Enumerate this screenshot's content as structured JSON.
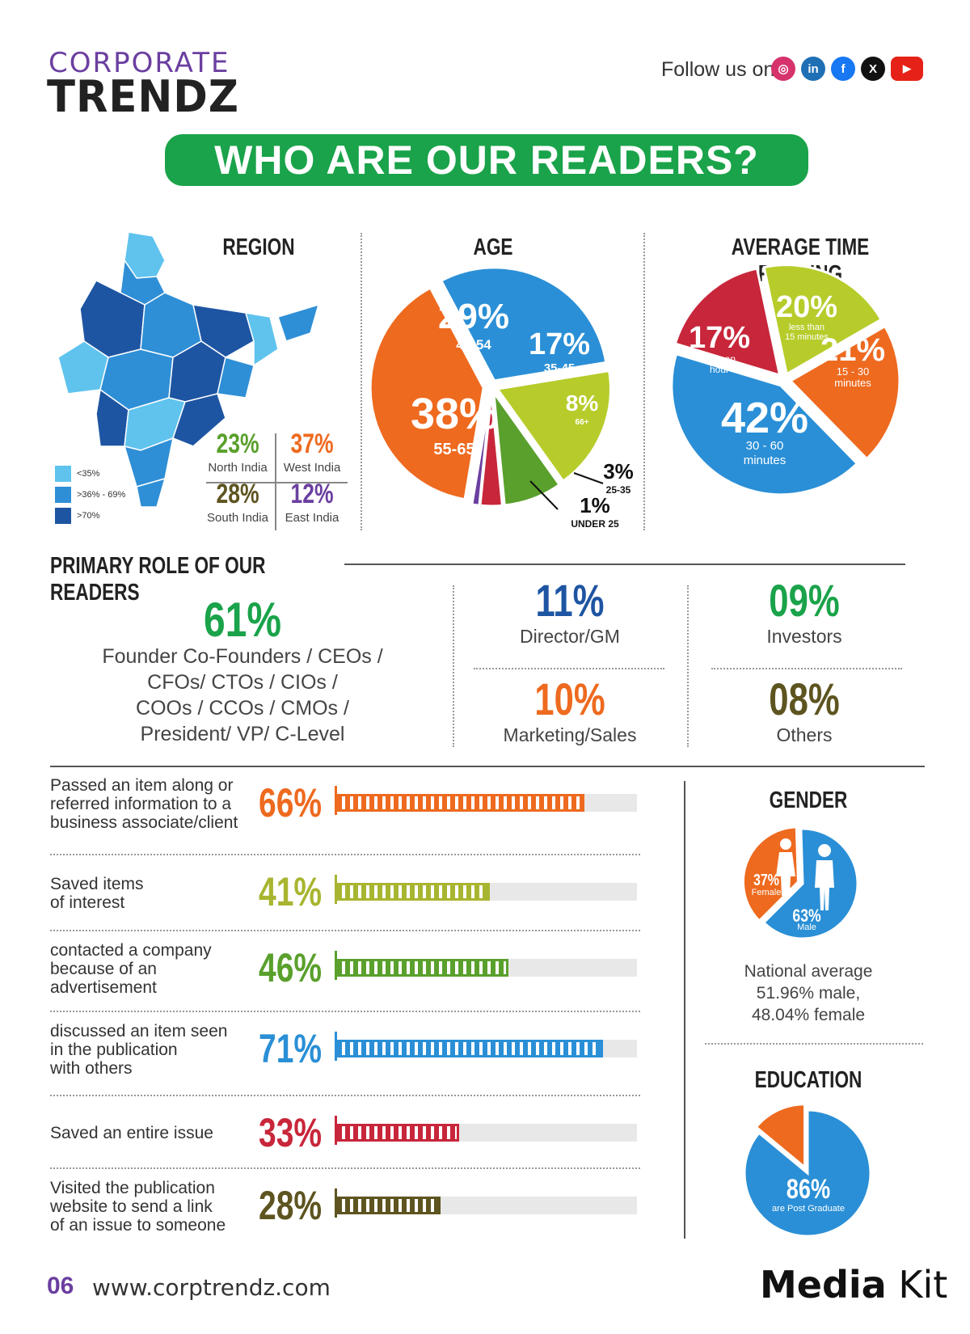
{
  "header": {
    "logo_top": "CORPORATE",
    "logo_bottom": "TRENDZ",
    "follow_text": "Follow us on",
    "socials": [
      {
        "icon": "instagram-icon",
        "glyph": "◎",
        "color": "#d6336c"
      },
      {
        "icon": "linkedin-icon",
        "glyph": "in",
        "color": "#1f6fb5"
      },
      {
        "icon": "facebook-icon",
        "glyph": "f",
        "color": "#1877f2"
      },
      {
        "icon": "x-icon",
        "glyph": "X",
        "color": "#111111"
      },
      {
        "icon": "youtube-icon",
        "glyph": "▶",
        "color": "#e62117"
      }
    ]
  },
  "banner": "WHO ARE OUR READERS?",
  "region": {
    "title": "REGION",
    "stats": [
      {
        "value": "23%",
        "label": "North India",
        "color": "#5aa02c"
      },
      {
        "value": "37%",
        "label": "West India",
        "color": "#ee6a1f"
      },
      {
        "value": "28%",
        "label": "South India",
        "color": "#5e5420"
      },
      {
        "value": "12%",
        "label": "East India",
        "color": "#6b3fa0"
      }
    ],
    "legend": [
      {
        "label": "<35%",
        "color": "#5fc3ee"
      },
      {
        "label": ">36% - 69%",
        "color": "#2f8fd6"
      },
      {
        "label": ">70%",
        "color": "#1e55a3"
      }
    ]
  },
  "chart_data": [
    {
      "type": "pie",
      "title": "AGE",
      "slices": [
        {
          "label": "45-54",
          "value": 29,
          "color": "#2a8fd6"
        },
        {
          "label": "35-45",
          "value": 17,
          "color": "#b7cc2b"
        },
        {
          "label": "66+",
          "value": 8,
          "color": "#5aa02c"
        },
        {
          "label": "25-35",
          "value": 3,
          "color": "#c8263a"
        },
        {
          "label": "UNDER 25",
          "value": 1,
          "color": "#6b3fa0"
        },
        {
          "label": "55-65",
          "value": 38,
          "color": "#ee6a1f"
        }
      ]
    },
    {
      "type": "pie",
      "title": "AVERAGE TIME READING",
      "slices": [
        {
          "label": "less than 15 minutes",
          "value": 20,
          "color": "#b7cc2b"
        },
        {
          "label": "15 - 30 minutes",
          "value": 21,
          "color": "#ee6a1f"
        },
        {
          "label": "30 - 60 minutes",
          "value": 42,
          "color": "#2a8fd6"
        },
        {
          "label": "over an hour",
          "value": 17,
          "color": "#c8263a"
        }
      ]
    },
    {
      "type": "bar",
      "categories": [
        "Passed an item along or referred information to a business associate/client",
        "Saved items of interest",
        "contacted a company because of an advertisement",
        "discussed an item seen in the publication with others",
        "Saved an entire issue",
        "Visited the publication website to send a link of an issue to someone"
      ],
      "values": [
        66,
        41,
        46,
        71,
        33,
        28
      ]
    },
    {
      "type": "pie",
      "title": "GENDER",
      "slices": [
        {
          "label": "Female",
          "value": 37,
          "color": "#ee6a1f"
        },
        {
          "label": "Male",
          "value": 63,
          "color": "#2a8fd6"
        }
      ]
    },
    {
      "type": "pie",
      "title": "EDUCATION",
      "slices": [
        {
          "label": "are Post Graduate",
          "value": 86,
          "color": "#2a8fd6"
        },
        {
          "label": "",
          "value": 14,
          "color": "#ee6a1f"
        }
      ]
    }
  ],
  "age": {
    "title": "AGE",
    "labels": [
      {
        "pct": "29%",
        "sub": "45-54"
      },
      {
        "pct": "17%",
        "sub": "35-45"
      },
      {
        "pct": "8%",
        "sub": "66+"
      },
      {
        "pct": "38%",
        "sub": "55-65"
      },
      {
        "pct": "3%",
        "sub": "25-35"
      },
      {
        "pct": "1%",
        "sub": "UNDER 25"
      }
    ]
  },
  "time": {
    "title": "AVERAGE TIME READING",
    "labels": [
      {
        "pct": "20%",
        "sub": "less than 15 minutes"
      },
      {
        "pct": "17%",
        "sub": "over an hour"
      },
      {
        "pct": "21%",
        "sub": "15 - 30 minutes"
      },
      {
        "pct": "42%",
        "sub": "30 - 60 minutes"
      }
    ]
  },
  "roles": {
    "title": "PRIMARY ROLE OF OUR READERS",
    "main_value": "61%",
    "main_label": [
      "Founder Co-Founders / CEOs /",
      "CFOs/ CTOs / CIOs /",
      "COOs / CCOs  / CMOs /",
      "President/ VP/ C-Level"
    ],
    "items": [
      {
        "value": "11%",
        "label": "Director/GM",
        "color": "#1e55a3"
      },
      {
        "value": "09%",
        "label": "Investors",
        "color": "#1aa34a"
      },
      {
        "value": "10%",
        "label": "Marketing/Sales",
        "color": "#ee6a1f"
      },
      {
        "value": "08%",
        "label": "Others",
        "color": "#5e5420"
      }
    ]
  },
  "bars": [
    {
      "label": [
        "Passed an item along or",
        "referred information to a",
        "business associate/client"
      ],
      "pct": "66%",
      "value": 66,
      "color": "#ee6a1f"
    },
    {
      "label": [
        "Saved items",
        "of interest"
      ],
      "pct": "41%",
      "value": 41,
      "color": "#a8b530"
    },
    {
      "label": [
        "contacted a company",
        "because of an",
        "advertisement"
      ],
      "pct": "46%",
      "value": 46,
      "color": "#5aa02c"
    },
    {
      "label": [
        "discussed an item seen",
        "in the publication",
        "with others"
      ],
      "pct": "71%",
      "value": 71,
      "color": "#2a8fd6"
    },
    {
      "label": [
        "Saved an entire issue"
      ],
      "pct": "33%",
      "value": 33,
      "color": "#c8263a"
    },
    {
      "label": [
        "Visited the publication",
        "website to send a link",
        "of an issue to someone"
      ],
      "pct": "28%",
      "value": 28,
      "color": "#5e5420"
    }
  ],
  "gender": {
    "title": "GENDER",
    "female_pct": "37%",
    "female_label": "Female",
    "male_pct": "63%",
    "male_label": "Male",
    "note": [
      "National average",
      "51.96% male,",
      "48.04% female"
    ]
  },
  "education": {
    "title": "EDUCATION",
    "pct": "86%",
    "label": "are Post Graduate"
  },
  "footer": {
    "page": "06",
    "url": "www.corptrendz.com",
    "brand_bold": "Media",
    "brand_light": "Kit"
  }
}
